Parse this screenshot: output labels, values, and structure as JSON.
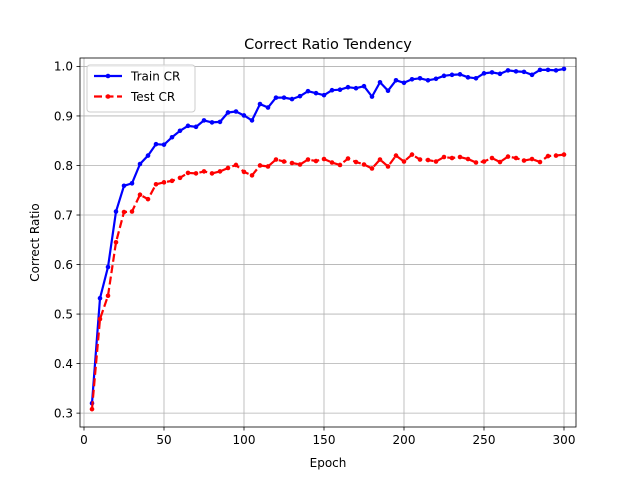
{
  "chart_data": {
    "type": "line",
    "title": "Correct Ratio Tendency",
    "xlabel": "Epoch",
    "ylabel": "Correct Ratio",
    "xlim": [
      -2.5,
      307.5
    ],
    "ylim": [
      0.272,
      1.017
    ],
    "xticks": [
      "0",
      "50",
      "100",
      "150",
      "200",
      "250",
      "300"
    ],
    "yticks": [
      "0.3",
      "0.4",
      "0.5",
      "0.6",
      "0.7",
      "0.8",
      "0.9",
      "1.0"
    ],
    "grid": true,
    "legend_position": "top-left",
    "series": [
      {
        "name": "Train CR",
        "color": "#0000ff",
        "linestyle": "solid",
        "marker": "point",
        "x": [
          5,
          10,
          15,
          20,
          25,
          30,
          35,
          40,
          45,
          50,
          55,
          60,
          65,
          70,
          75,
          80,
          85,
          90,
          95,
          100,
          105,
          110,
          115,
          120,
          125,
          130,
          135,
          140,
          145,
          150,
          155,
          160,
          165,
          170,
          175,
          180,
          185,
          190,
          195,
          200,
          205,
          210,
          215,
          220,
          225,
          230,
          235,
          240,
          245,
          250,
          255,
          260,
          265,
          270,
          275,
          280,
          285,
          290,
          295,
          300
        ],
        "values": [
          0.32,
          0.532,
          0.595,
          0.707,
          0.759,
          0.764,
          0.803,
          0.82,
          0.843,
          0.842,
          0.857,
          0.87,
          0.88,
          0.878,
          0.891,
          0.887,
          0.888,
          0.907,
          0.909,
          0.901,
          0.891,
          0.924,
          0.917,
          0.937,
          0.937,
          0.934,
          0.94,
          0.95,
          0.946,
          0.942,
          0.952,
          0.953,
          0.958,
          0.956,
          0.96,
          0.939,
          0.968,
          0.951,
          0.972,
          0.967,
          0.974,
          0.976,
          0.972,
          0.975,
          0.981,
          0.983,
          0.984,
          0.978,
          0.976,
          0.986,
          0.988,
          0.985,
          0.992,
          0.99,
          0.989,
          0.983,
          0.993,
          0.993,
          0.992,
          0.995
        ]
      },
      {
        "name": "Test CR",
        "color": "#ff0000",
        "linestyle": "dashed",
        "marker": "point",
        "x": [
          5,
          10,
          15,
          20,
          25,
          30,
          35,
          40,
          45,
          50,
          55,
          60,
          65,
          70,
          75,
          80,
          85,
          90,
          95,
          100,
          105,
          110,
          115,
          120,
          125,
          130,
          135,
          140,
          145,
          150,
          155,
          160,
          165,
          170,
          175,
          180,
          185,
          190,
          195,
          200,
          205,
          210,
          215,
          220,
          225,
          230,
          235,
          240,
          245,
          250,
          255,
          260,
          265,
          270,
          275,
          280,
          285,
          290,
          295,
          300
        ],
        "values": [
          0.308,
          0.49,
          0.537,
          0.645,
          0.706,
          0.707,
          0.741,
          0.732,
          0.762,
          0.766,
          0.769,
          0.775,
          0.785,
          0.784,
          0.788,
          0.784,
          0.788,
          0.795,
          0.801,
          0.787,
          0.78,
          0.8,
          0.798,
          0.812,
          0.808,
          0.805,
          0.802,
          0.812,
          0.809,
          0.813,
          0.806,
          0.801,
          0.814,
          0.807,
          0.802,
          0.794,
          0.812,
          0.798,
          0.82,
          0.808,
          0.822,
          0.812,
          0.811,
          0.808,
          0.817,
          0.815,
          0.817,
          0.813,
          0.806,
          0.808,
          0.815,
          0.807,
          0.818,
          0.815,
          0.81,
          0.813,
          0.807,
          0.819,
          0.82,
          0.822
        ]
      }
    ]
  }
}
